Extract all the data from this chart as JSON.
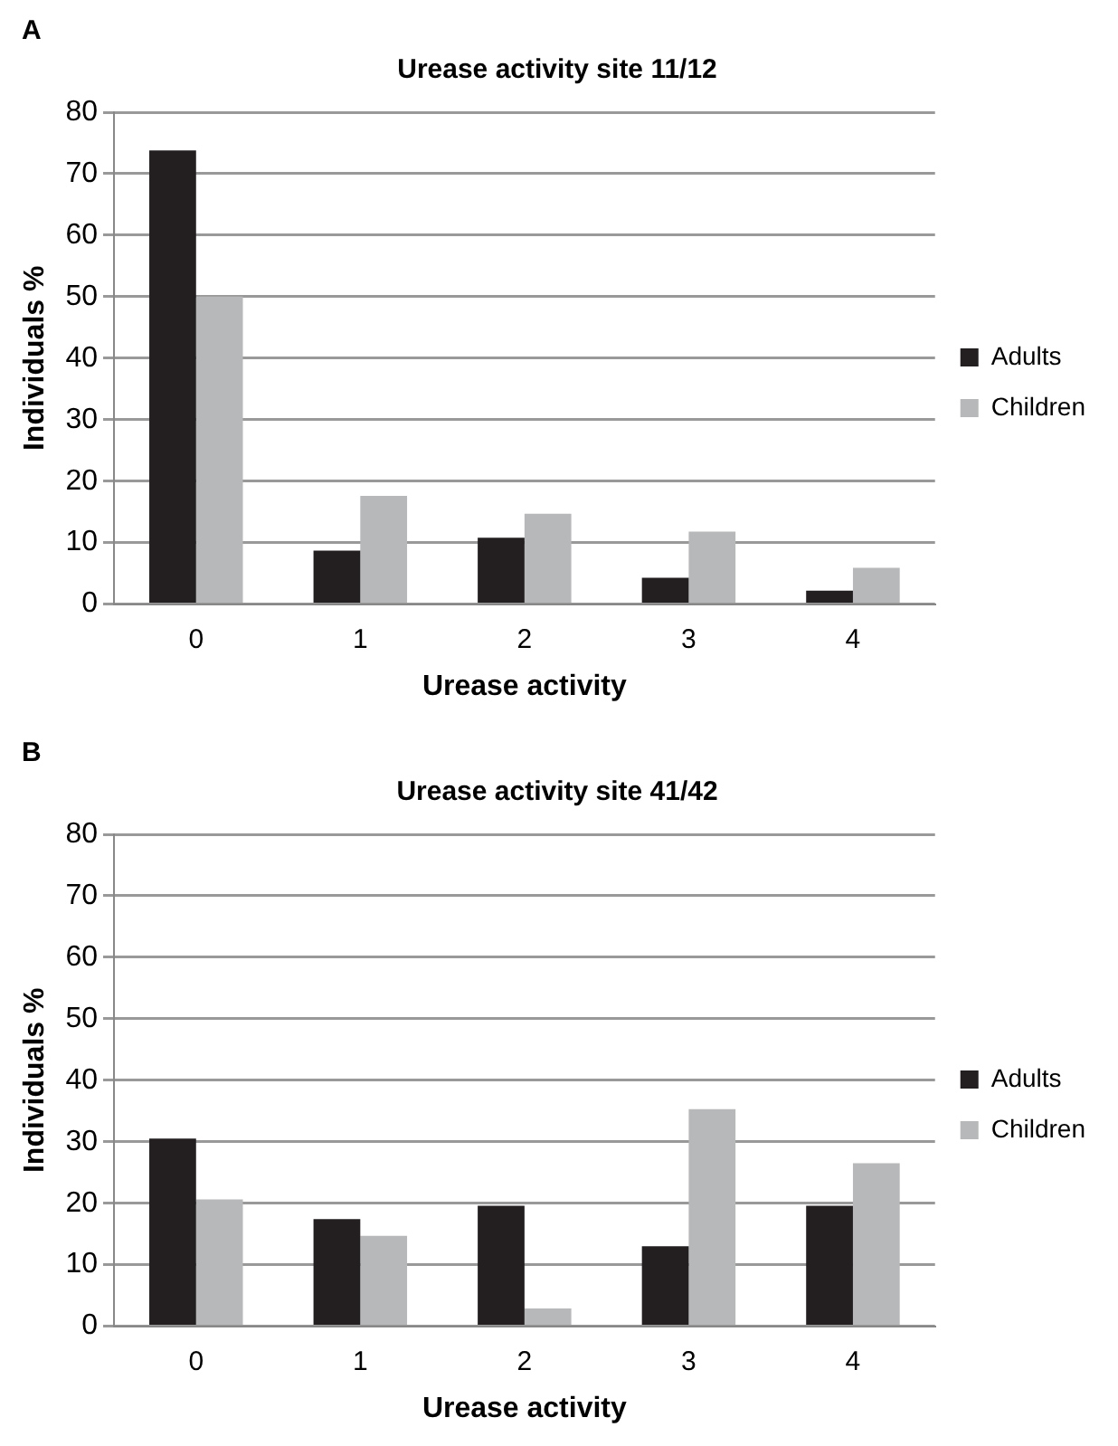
{
  "chart_data": [
    {
      "type": "bar",
      "title": "Urease activity site 11/12",
      "xlabel": "Urease activity",
      "ylabel": "Individuals %",
      "annotations": [
        "A"
      ],
      "categories": [
        "0",
        "1",
        "2",
        "3",
        "4"
      ],
      "series": [
        {
          "name": "Adults",
          "color": "#231f20",
          "values": [
            73.8,
            8.7,
            10.8,
            4.3,
            2.2
          ]
        },
        {
          "name": "Children",
          "color": "#b7b8b9",
          "values": [
            50,
            17.6,
            14.7,
            11.8,
            5.9
          ]
        }
      ],
      "ylim": [
        0,
        80
      ],
      "yticks": [
        0,
        10,
        20,
        30,
        40,
        50,
        60,
        70,
        80
      ],
      "grid": "y",
      "legend": "right"
    },
    {
      "type": "bar",
      "title": "Urease activity site 41/42",
      "xlabel": "Urease activity",
      "ylabel": "Individuals %",
      "annotations": [
        "B"
      ],
      "categories": [
        "0",
        "1",
        "2",
        "3",
        "4"
      ],
      "series": [
        {
          "name": "Adults",
          "color": "#231f20",
          "values": [
            30.5,
            17.4,
            19.6,
            13.0,
            19.6
          ]
        },
        {
          "name": "Children",
          "color": "#b7b8b9",
          "values": [
            20.6,
            14.7,
            2.9,
            35.3,
            26.5
          ]
        }
      ],
      "ylim": [
        0,
        80
      ],
      "yticks": [
        0,
        10,
        20,
        30,
        40,
        50,
        60,
        70,
        80
      ],
      "grid": "y",
      "legend": "right"
    }
  ]
}
